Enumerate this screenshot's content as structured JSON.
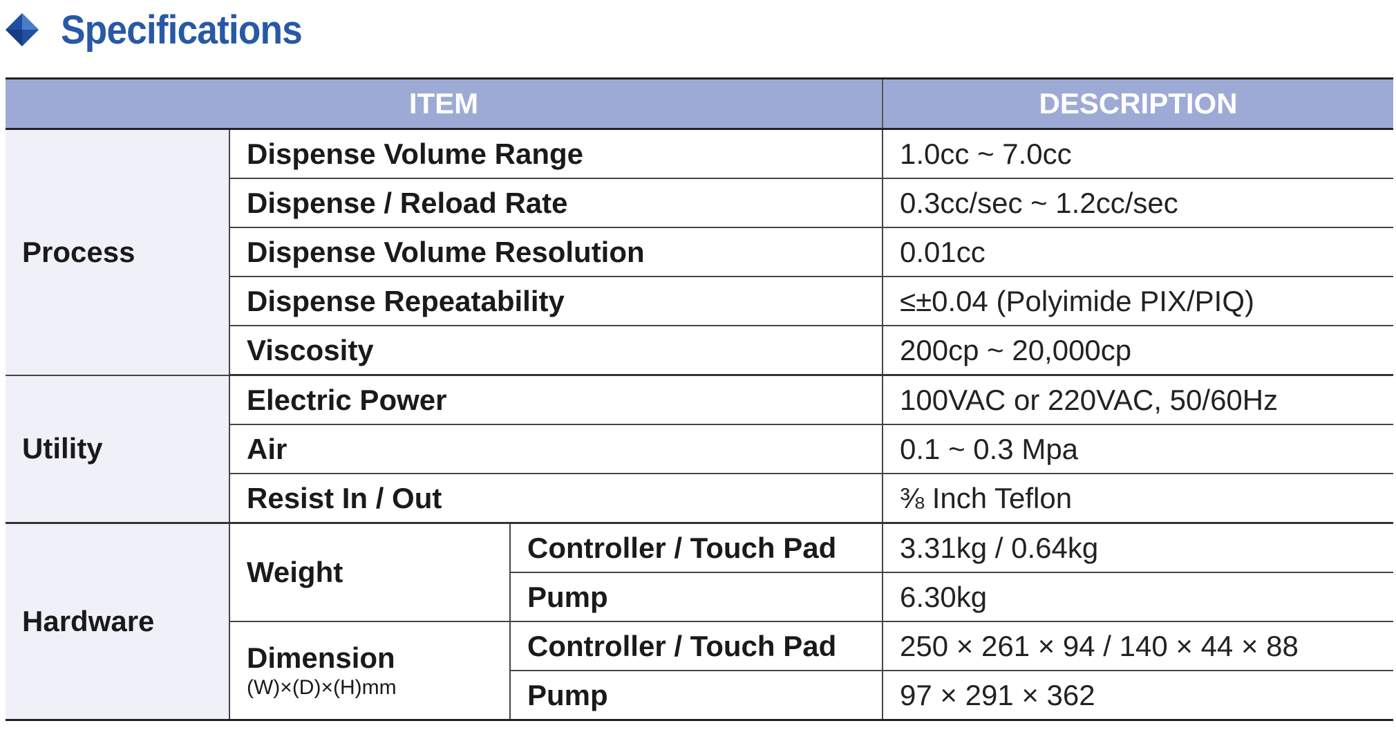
{
  "heading": {
    "icon": "diamond-icon",
    "title": "Specifications",
    "accent_color": "#2858a6"
  },
  "table": {
    "header_bg": "#9eaad6",
    "columns": {
      "item": "ITEM",
      "description": "DESCRIPTION"
    },
    "groups": [
      {
        "name": "Process",
        "rows": [
          {
            "item": "Dispense Volume Range",
            "description": "1.0cc ~ 7.0cc"
          },
          {
            "item": "Dispense / Reload Rate",
            "description": "0.3cc/sec ~ 1.2cc/sec"
          },
          {
            "item": "Dispense Volume Resolution",
            "description": "0.01cc"
          },
          {
            "item": "Dispense Repeatability",
            "description": "≤±0.04 (Polyimide PIX/PIQ)"
          },
          {
            "item": "Viscosity",
            "description": "200cp ~ 20,000cp"
          }
        ]
      },
      {
        "name": "Utility",
        "rows": [
          {
            "item": "Electric Power",
            "description": "100VAC or 220VAC, 50/60Hz"
          },
          {
            "item": "Air",
            "description": "0.1 ~ 0.3 Mpa"
          },
          {
            "item": "Resist In / Out",
            "description": "⅜ Inch Teflon"
          }
        ]
      },
      {
        "name": "Hardware",
        "items": [
          {
            "item": "Weight",
            "note": "",
            "rows": [
              {
                "sub": "Controller / Touch Pad",
                "description": "3.31kg / 0.64kg"
              },
              {
                "sub": "Pump",
                "description": "6.30kg"
              }
            ]
          },
          {
            "item": "Dimension",
            "note": "(W)×(D)×(H)mm",
            "rows": [
              {
                "sub": "Controller / Touch Pad",
                "description": "250 × 261 × 94 / 140 × 44 × 88"
              },
              {
                "sub": "Pump",
                "description": "97 × 291 × 362"
              }
            ]
          }
        ]
      }
    ]
  }
}
